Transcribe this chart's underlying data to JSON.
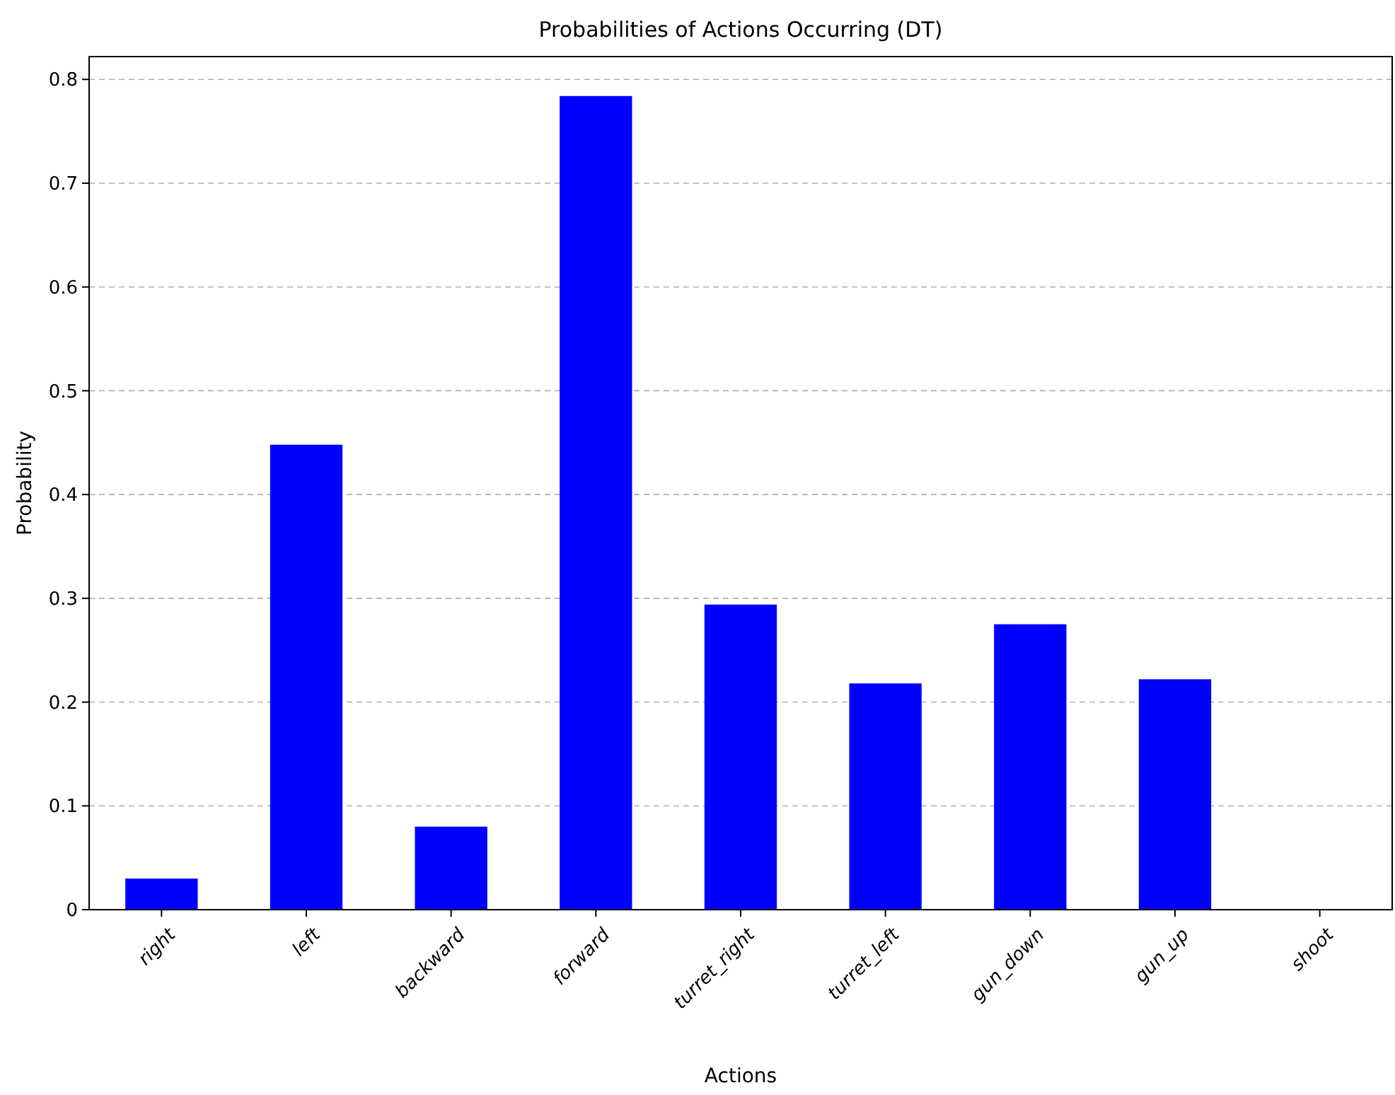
{
  "chart_data": {
    "type": "bar",
    "title": "Probabilities of Actions Occurring (DT)",
    "xlabel": "Actions",
    "ylabel": "Probability",
    "categories": [
      "right",
      "left",
      "backward",
      "forward",
      "turret_right",
      "turret_left",
      "gun_down",
      "gun_up",
      "shoot"
    ],
    "values": [
      0.03,
      0.448,
      0.08,
      0.784,
      0.294,
      0.218,
      0.275,
      0.222,
      0
    ],
    "color": "#0000ff",
    "ylim": [
      0,
      0.822
    ],
    "yticks": [
      0,
      0.1,
      0.2,
      0.3,
      0.4,
      0.5,
      0.6,
      0.7,
      0.8
    ],
    "grid": "y"
  }
}
